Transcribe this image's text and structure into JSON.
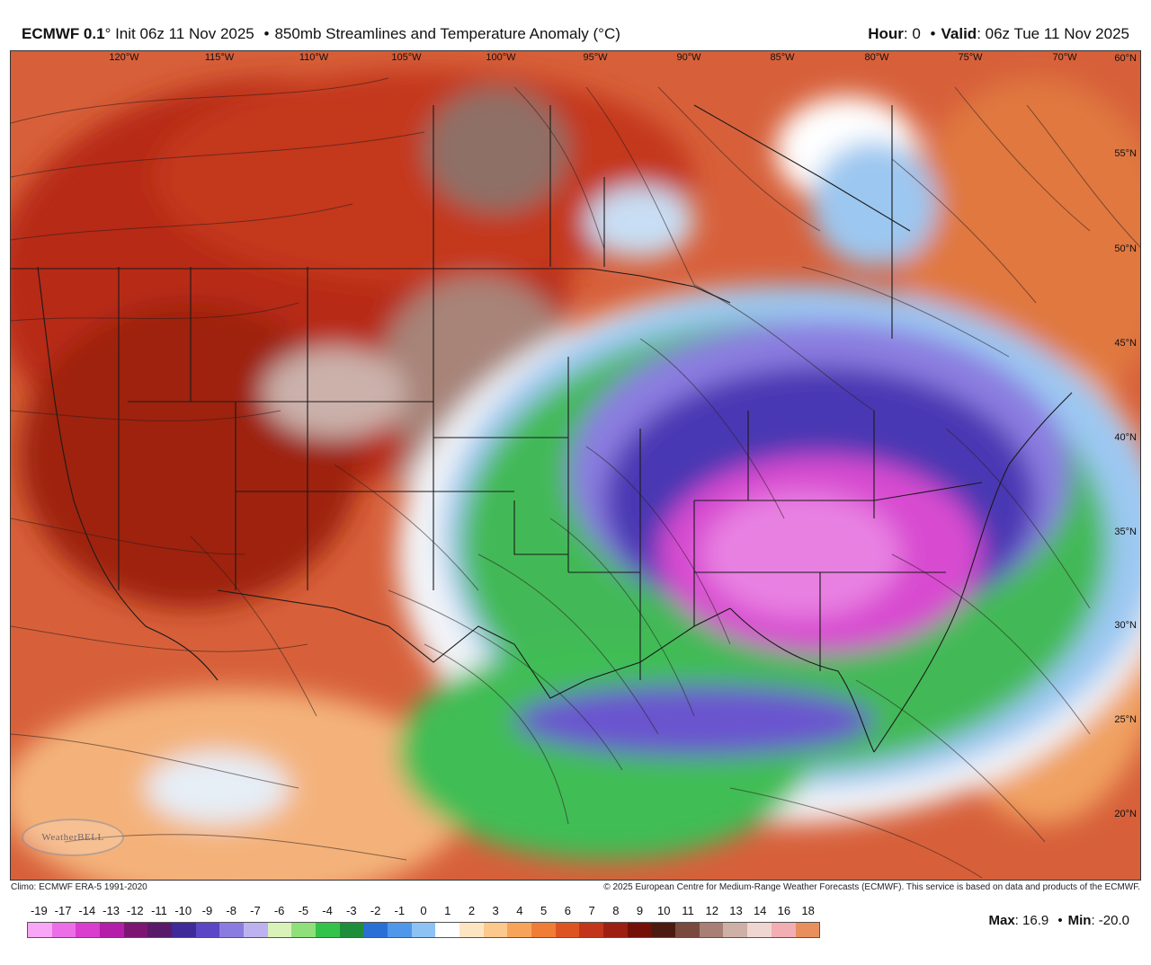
{
  "header": {
    "model": "ECMWF 0.1",
    "init_text": "° Init 06z 11 Nov 2025",
    "bullet": "•",
    "product": "850mb Streamlines and Temperature Anomaly (°C)",
    "hour_label": "Hour",
    "hour_value": ": 0",
    "valid_label": "Valid",
    "valid_value": ": 06z Tue 11 Nov 2025"
  },
  "map": {
    "longitude_labels": [
      "120°W",
      "115°W",
      "110°W",
      "105°W",
      "100°W",
      "95°W",
      "90°W",
      "85°W",
      "80°W",
      "75°W",
      "70°W"
    ],
    "latitude_labels": [
      "60°N",
      "55°N",
      "50°N",
      "45°N",
      "40°N",
      "35°N",
      "30°N",
      "25°N",
      "20°N"
    ],
    "watermark": "WeatherBELL"
  },
  "captions": {
    "climo": "Climo: ECMWF ERA-5 1991-2020",
    "copyright": "© 2025 European Centre for Medium-Range Weather Forecasts (ECMWF). This service is based on data and products of the ECMWF."
  },
  "legend": {
    "labels": [
      "-19",
      "-17",
      "-14",
      "-13",
      "-12",
      "-11",
      "-10",
      "-9",
      "-8",
      "-7",
      "-6",
      "-5",
      "-4",
      "-3",
      "-2",
      "-1",
      "0",
      "1",
      "2",
      "3",
      "4",
      "5",
      "6",
      "7",
      "8",
      "9",
      "10",
      "11",
      "12",
      "13",
      "14",
      "16",
      "18"
    ],
    "colors": [
      "#f7a7f5",
      "#ec6ee6",
      "#d93ccf",
      "#b41ea8",
      "#7d1673",
      "#5a1a6a",
      "#3f2a9a",
      "#5b46c6",
      "#8a7be0",
      "#bdb2ef",
      "#d9f2b9",
      "#8fe07a",
      "#33c24a",
      "#1f8e3a",
      "#2a6fd6",
      "#4f97ea",
      "#8dc2f4",
      "#ffffff",
      "#fde5c4",
      "#fbc98c",
      "#f7a45a",
      "#ef7d36",
      "#de5322",
      "#c2351a",
      "#9c1f12",
      "#741008",
      "#4d1a12",
      "#7b4a3e",
      "#a77f75",
      "#cfb0a7",
      "#f0d6d0",
      "#f2aeb3",
      "#e98f5d"
    ]
  },
  "stats": {
    "max_label": "Max",
    "max_value": ": 16.9",
    "min_label": "Min",
    "min_value": ": -20.0"
  }
}
